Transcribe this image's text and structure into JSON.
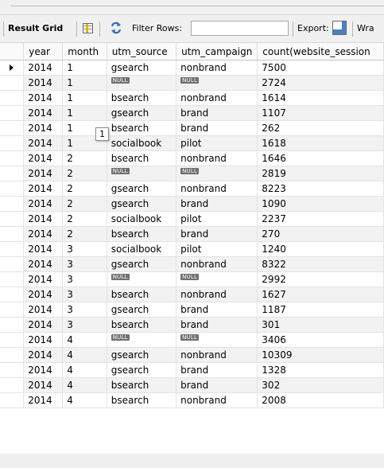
{
  "toolbar": {
    "result_grid_label": "Result Grid",
    "filter_rows_label": "Filter Rows:",
    "filter_value": "",
    "export_label": "Export:",
    "wrap_label": "Wra",
    "icons": [
      "grid-view-icon",
      "filter-icon",
      "export-icon"
    ]
  },
  "columns": [
    "year",
    "month",
    "utm_source",
    "utm_campaign",
    "count(website_session"
  ],
  "null_label": "NULL",
  "tooltip_text": "1",
  "rows": [
    [
      "2014",
      "1",
      "gsearch",
      "nonbrand",
      "7500"
    ],
    [
      "2014",
      "1",
      "NULL",
      "NULL",
      "2724"
    ],
    [
      "2014",
      "1",
      "bsearch",
      "nonbrand",
      "1614"
    ],
    [
      "2014",
      "1",
      "gsearch",
      "brand",
      "1107"
    ],
    [
      "2014",
      "1",
      "bsearch",
      "brand",
      "262"
    ],
    [
      "2014",
      "1",
      "socialbook",
      "pilot",
      "1618"
    ],
    [
      "2014",
      "2",
      "bsearch",
      "nonbrand",
      "1646"
    ],
    [
      "2014",
      "2",
      "NULL",
      "NULL",
      "2819"
    ],
    [
      "2014",
      "2",
      "gsearch",
      "nonbrand",
      "8223"
    ],
    [
      "2014",
      "2",
      "gsearch",
      "brand",
      "1090"
    ],
    [
      "2014",
      "2",
      "socialbook",
      "pilot",
      "2237"
    ],
    [
      "2014",
      "2",
      "bsearch",
      "brand",
      "270"
    ],
    [
      "2014",
      "3",
      "socialbook",
      "pilot",
      "1240"
    ],
    [
      "2014",
      "3",
      "gsearch",
      "nonbrand",
      "8322"
    ],
    [
      "2014",
      "3",
      "NULL",
      "NULL",
      "2992"
    ],
    [
      "2014",
      "3",
      "bsearch",
      "nonbrand",
      "1627"
    ],
    [
      "2014",
      "3",
      "gsearch",
      "brand",
      "1187"
    ],
    [
      "2014",
      "3",
      "bsearch",
      "brand",
      "301"
    ],
    [
      "2014",
      "4",
      "NULL",
      "NULL",
      "3406"
    ],
    [
      "2014",
      "4",
      "gsearch",
      "nonbrand",
      "10309"
    ],
    [
      "2014",
      "4",
      "gsearch",
      "brand",
      "1328"
    ],
    [
      "2014",
      "4",
      "bsearch",
      "brand",
      "302"
    ],
    [
      "2014",
      "4",
      "bsearch",
      "nonbrand",
      "2008"
    ]
  ]
}
